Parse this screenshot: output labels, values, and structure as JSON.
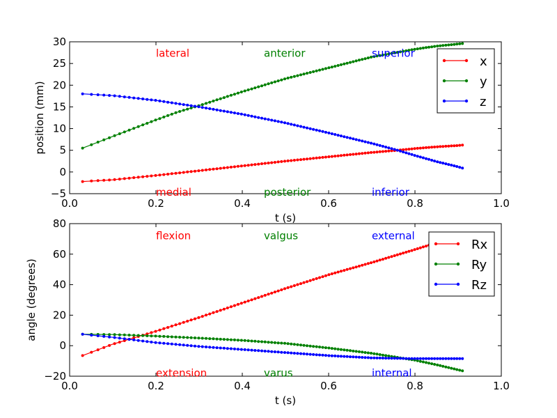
{
  "chart_data": [
    {
      "type": "line",
      "xlabel": "t (s)",
      "ylabel": "position (mm)",
      "xlim": [
        0.0,
        1.0
      ],
      "ylim": [
        -5,
        30
      ],
      "xticks": [
        "0.0",
        "0.2",
        "0.4",
        "0.6",
        "0.8",
        "1.0"
      ],
      "xtick_values": [
        0.0,
        0.2,
        0.4,
        0.6,
        0.8,
        1.0
      ],
      "yticks": [
        "−5",
        "0",
        "5",
        "10",
        "15",
        "20",
        "25",
        "30"
      ],
      "ytick_values": [
        -5,
        0,
        5,
        10,
        15,
        20,
        25,
        30
      ],
      "legend_position": "top-right",
      "series": [
        {
          "name": "x",
          "color": "#ff0000",
          "points": [
            [
              0.03,
              -2.2
            ],
            [
              0.1,
              -1.8
            ],
            [
              0.2,
              -0.8
            ],
            [
              0.3,
              0.3
            ],
            [
              0.4,
              1.4
            ],
            [
              0.5,
              2.5
            ],
            [
              0.6,
              3.5
            ],
            [
              0.7,
              4.5
            ],
            [
              0.76,
              5.0
            ],
            [
              0.8,
              5.4
            ],
            [
              0.85,
              5.8
            ],
            [
              0.9,
              6.1
            ],
            [
              0.91,
              6.2
            ]
          ]
        },
        {
          "name": "y",
          "color": "#008000",
          "points": [
            [
              0.03,
              5.5
            ],
            [
              0.1,
              8.2
            ],
            [
              0.2,
              12.0
            ],
            [
              0.25,
              13.8
            ],
            [
              0.3,
              15.3
            ],
            [
              0.4,
              18.5
            ],
            [
              0.5,
              21.5
            ],
            [
              0.6,
              24.0
            ],
            [
              0.7,
              26.5
            ],
            [
              0.8,
              28.3
            ],
            [
              0.85,
              29.0
            ],
            [
              0.91,
              29.6
            ]
          ]
        },
        {
          "name": "z",
          "color": "#0000ff",
          "points": [
            [
              0.03,
              18.0
            ],
            [
              0.1,
              17.6
            ],
            [
              0.2,
              16.5
            ],
            [
              0.3,
              15.0
            ],
            [
              0.4,
              13.3
            ],
            [
              0.5,
              11.3
            ],
            [
              0.6,
              9.0
            ],
            [
              0.7,
              6.6
            ],
            [
              0.76,
              5.0
            ],
            [
              0.8,
              3.8
            ],
            [
              0.85,
              2.4
            ],
            [
              0.9,
              1.2
            ],
            [
              0.91,
              0.9
            ]
          ]
        }
      ],
      "annotations": [
        {
          "text": "lateral",
          "x": 0.2,
          "y": 27.5,
          "color": "#ff0000"
        },
        {
          "text": "anterior",
          "x": 0.45,
          "y": 27.5,
          "color": "#008000"
        },
        {
          "text": "superior",
          "x": 0.7,
          "y": 27.5,
          "color": "#0000ff"
        },
        {
          "text": "medial",
          "x": 0.2,
          "y": -4.5,
          "color": "#ff0000"
        },
        {
          "text": "posterior",
          "x": 0.45,
          "y": -4.5,
          "color": "#008000"
        },
        {
          "text": "inferior",
          "x": 0.7,
          "y": -4.5,
          "color": "#0000ff"
        }
      ]
    },
    {
      "type": "line",
      "xlabel": "t (s)",
      "ylabel": "angle (degrees)",
      "xlim": [
        0.0,
        1.0
      ],
      "ylim": [
        -20,
        80
      ],
      "xticks": [
        "0.0",
        "0.2",
        "0.4",
        "0.6",
        "0.8",
        "1.0"
      ],
      "xtick_values": [
        0.0,
        0.2,
        0.4,
        0.6,
        0.8,
        1.0
      ],
      "yticks": [
        "−20",
        "0",
        "20",
        "40",
        "60",
        "80"
      ],
      "ytick_values": [
        -20,
        0,
        20,
        40,
        60,
        80
      ],
      "legend_position": "top-right",
      "series": [
        {
          "name": "Rx",
          "color": "#ff0000",
          "points": [
            [
              0.03,
              -6.5
            ],
            [
              0.1,
              1.0
            ],
            [
              0.2,
              9.5
            ],
            [
              0.3,
              18.5
            ],
            [
              0.4,
              28.0
            ],
            [
              0.5,
              37.5
            ],
            [
              0.6,
              46.5
            ],
            [
              0.7,
              54.5
            ],
            [
              0.8,
              63.0
            ],
            [
              0.85,
              67.5
            ],
            [
              0.91,
              72.5
            ]
          ]
        },
        {
          "name": "Ry",
          "color": "#008000",
          "points": [
            [
              0.03,
              7.5
            ],
            [
              0.1,
              7.3
            ],
            [
              0.2,
              6.3
            ],
            [
              0.3,
              5.0
            ],
            [
              0.4,
              3.5
            ],
            [
              0.5,
              1.5
            ],
            [
              0.6,
              -1.5
            ],
            [
              0.7,
              -5.0
            ],
            [
              0.8,
              -9.5
            ],
            [
              0.85,
              -12.5
            ],
            [
              0.91,
              -16.5
            ]
          ]
        },
        {
          "name": "Rz",
          "color": "#0000ff",
          "points": [
            [
              0.03,
              7.5
            ],
            [
              0.1,
              5.5
            ],
            [
              0.2,
              2.0
            ],
            [
              0.3,
              -0.5
            ],
            [
              0.4,
              -2.5
            ],
            [
              0.5,
              -4.5
            ],
            [
              0.6,
              -6.5
            ],
            [
              0.7,
              -8.0
            ],
            [
              0.8,
              -8.5
            ],
            [
              0.85,
              -8.5
            ],
            [
              0.91,
              -8.5
            ]
          ]
        }
      ],
      "annotations": [
        {
          "text": "flexion",
          "x": 0.2,
          "y": 72.5,
          "color": "#ff0000"
        },
        {
          "text": "valgus",
          "x": 0.45,
          "y": 72.5,
          "color": "#008000"
        },
        {
          "text": "external",
          "x": 0.7,
          "y": 72.5,
          "color": "#0000ff"
        },
        {
          "text": "extension",
          "x": 0.2,
          "y": -17.5,
          "color": "#ff0000"
        },
        {
          "text": "varus",
          "x": 0.45,
          "y": -17.5,
          "color": "#008000"
        },
        {
          "text": "internal",
          "x": 0.7,
          "y": -17.5,
          "color": "#0000ff"
        }
      ]
    }
  ]
}
